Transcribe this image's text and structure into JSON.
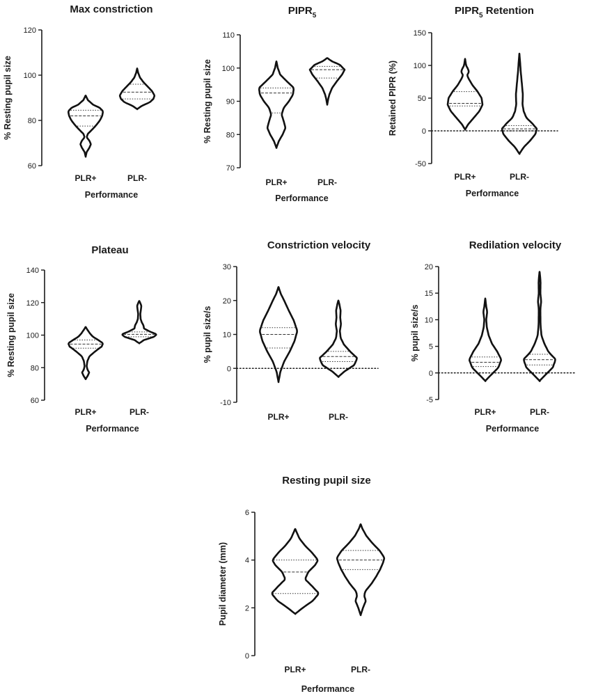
{
  "chart_data": [
    {
      "type": "violin",
      "id": "max-constriction",
      "title": "Max constriction",
      "ylabel": "% Resting pupil size",
      "xlabel": "Performance",
      "ylim": [
        60,
        120
      ],
      "yticks": [
        60,
        80,
        100,
        120
      ],
      "zero_line": false,
      "categories": [
        "PLR+",
        "PLR-"
      ],
      "violins": [
        {
          "name": "PLR+",
          "range": [
            64,
            91
          ],
          "q1": 77.5,
          "median": 82,
          "q3": 84.5,
          "profile": [
            [
              64,
              0
            ],
            [
              66,
              0.06
            ],
            [
              68,
              0.22
            ],
            [
              69.5,
              0.3
            ],
            [
              71,
              0.22
            ],
            [
              72.5,
              0.06
            ],
            [
              74,
              0.12
            ],
            [
              76,
              0.38
            ],
            [
              78,
              0.62
            ],
            [
              80,
              0.82
            ],
            [
              82,
              0.95
            ],
            [
              84,
              1.0
            ],
            [
              85.5,
              0.82
            ],
            [
              87,
              0.42
            ],
            [
              89,
              0.13
            ],
            [
              91,
              0
            ]
          ]
        },
        {
          "name": "PLR-",
          "range": [
            85,
            103
          ],
          "q1": 89.5,
          "median": 92.5,
          "q3": 96,
          "profile": [
            [
              85,
              0
            ],
            [
              86.5,
              0.28
            ],
            [
              88,
              0.72
            ],
            [
              89.5,
              0.93
            ],
            [
              91,
              1.0
            ],
            [
              93,
              0.85
            ],
            [
              95,
              0.6
            ],
            [
              97,
              0.35
            ],
            [
              99,
              0.16
            ],
            [
              101,
              0.06
            ],
            [
              103,
              0
            ]
          ]
        }
      ]
    },
    {
      "type": "violin",
      "id": "pipr5",
      "title": "PIPR",
      "title_sub": "5",
      "ylabel": "% Resting pupil size",
      "xlabel": "Performance",
      "ylim": [
        70,
        110
      ],
      "yticks": [
        70,
        80,
        90,
        100,
        110
      ],
      "zero_line": false,
      "categories": [
        "PLR+",
        "PLR-"
      ],
      "violins": [
        {
          "name": "PLR+",
          "range": [
            76,
            102
          ],
          "q1": 86.5,
          "median": 92.5,
          "q3": 94,
          "profile": [
            [
              76,
              0
            ],
            [
              78,
              0.14
            ],
            [
              80,
              0.36
            ],
            [
              82,
              0.52
            ],
            [
              84,
              0.42
            ],
            [
              86,
              0.3
            ],
            [
              88,
              0.42
            ],
            [
              90,
              0.72
            ],
            [
              92,
              0.95
            ],
            [
              94,
              1.0
            ],
            [
              96,
              0.6
            ],
            [
              98,
              0.22
            ],
            [
              100,
              0.08
            ],
            [
              102,
              0
            ]
          ]
        },
        {
          "name": "PLR-",
          "range": [
            89,
            103
          ],
          "q1": 97,
          "median": 99.5,
          "q3": 100.5,
          "profile": [
            [
              89,
              0
            ],
            [
              90.5,
              0.05
            ],
            [
              92,
              0.12
            ],
            [
              94,
              0.28
            ],
            [
              96,
              0.55
            ],
            [
              98,
              0.85
            ],
            [
              99.5,
              1.0
            ],
            [
              101,
              0.72
            ],
            [
              102,
              0.28
            ],
            [
              103,
              0
            ]
          ]
        }
      ]
    },
    {
      "type": "violin",
      "id": "pipr5-retention",
      "title": "PIPR",
      "title_sub": "5",
      "title_rest": " Retention",
      "ylabel": "Retained PIPR (%)",
      "xlabel": "Performance",
      "ylim": [
        -50,
        150
      ],
      "yticks": [
        -50,
        0,
        50,
        100,
        150
      ],
      "zero_line": true,
      "categories": [
        "PLR+",
        "PLR-"
      ],
      "violins": [
        {
          "name": "PLR+",
          "range": [
            2,
            110
          ],
          "q1": 38,
          "median": 42,
          "q3": 60,
          "profile": [
            [
              2,
              0
            ],
            [
              10,
              0.18
            ],
            [
              20,
              0.5
            ],
            [
              30,
              0.82
            ],
            [
              40,
              1.0
            ],
            [
              50,
              0.95
            ],
            [
              60,
              0.72
            ],
            [
              70,
              0.42
            ],
            [
              80,
              0.2
            ],
            [
              85,
              0.12
            ],
            [
              90,
              0.22
            ],
            [
              95,
              0.16
            ],
            [
              100,
              0.06
            ],
            [
              110,
              0
            ]
          ]
        },
        {
          "name": "PLR-",
          "range": [
            -35,
            118
          ],
          "q1": 0,
          "median": 3,
          "q3": 8,
          "profile": [
            [
              -35,
              0
            ],
            [
              -25,
              0.25
            ],
            [
              -15,
              0.62
            ],
            [
              -5,
              0.92
            ],
            [
              3,
              1.0
            ],
            [
              12,
              0.72
            ],
            [
              20,
              0.4
            ],
            [
              30,
              0.25
            ],
            [
              40,
              0.18
            ],
            [
              55,
              0.2
            ],
            [
              70,
              0.15
            ],
            [
              90,
              0.08
            ],
            [
              105,
              0.04
            ],
            [
              118,
              0
            ]
          ]
        }
      ]
    },
    {
      "type": "violin",
      "id": "plateau",
      "title": "Plateau",
      "ylabel": "% Resting pupil size",
      "xlabel": "Performance",
      "ylim": [
        60,
        140
      ],
      "yticks": [
        60,
        80,
        100,
        120,
        140
      ],
      "zero_line": false,
      "categories": [
        "PLR+",
        "PLR-"
      ],
      "violins": [
        {
          "name": "PLR+",
          "range": [
            73,
            105
          ],
          "q1": 92,
          "median": 94.5,
          "q3": 97,
          "profile": [
            [
              73,
              0
            ],
            [
              75,
              0.12
            ],
            [
              77,
              0.2
            ],
            [
              79,
              0.1
            ],
            [
              81,
              0.06
            ],
            [
              84,
              0.1
            ],
            [
              87,
              0.22
            ],
            [
              90,
              0.55
            ],
            [
              93,
              0.92
            ],
            [
              95,
              1.0
            ],
            [
              97,
              0.72
            ],
            [
              99,
              0.42
            ],
            [
              101,
              0.25
            ],
            [
              103,
              0.12
            ],
            [
              105,
              0
            ]
          ]
        },
        {
          "name": "PLR-",
          "range": [
            95,
            121
          ],
          "q1": 99,
          "median": 100.5,
          "q3": 102,
          "profile": [
            [
              95,
              0
            ],
            [
              97,
              0.28
            ],
            [
              99,
              0.85
            ],
            [
              100.5,
              1.0
            ],
            [
              102,
              0.65
            ],
            [
              104,
              0.28
            ],
            [
              106,
              0.24
            ],
            [
              108,
              0.14
            ],
            [
              110,
              0.08
            ],
            [
              113,
              0.06
            ],
            [
              116,
              0.1
            ],
            [
              118,
              0.12
            ],
            [
              120,
              0.05
            ],
            [
              121,
              0
            ]
          ]
        }
      ]
    },
    {
      "type": "violin",
      "id": "constriction-velocity",
      "title": "Constriction velocity",
      "ylabel": "% pupil size/s",
      "xlabel": "",
      "ylim": [
        -10,
        30
      ],
      "yticks": [
        -10,
        0,
        10,
        20,
        30
      ],
      "zero_line": true,
      "categories": [
        "PLR+",
        "PLR-"
      ],
      "violins": [
        {
          "name": "PLR+",
          "range": [
            -4,
            24
          ],
          "q1": 6,
          "median": 10,
          "q3": 12,
          "profile": [
            [
              -4,
              0
            ],
            [
              -1,
              0.1
            ],
            [
              2,
              0.3
            ],
            [
              5,
              0.6
            ],
            [
              8,
              0.85
            ],
            [
              11,
              1.0
            ],
            [
              14,
              0.82
            ],
            [
              17,
              0.55
            ],
            [
              20,
              0.3
            ],
            [
              22,
              0.12
            ],
            [
              24,
              0
            ]
          ]
        },
        {
          "name": "PLR-",
          "range": [
            -2.5,
            20
          ],
          "q1": 2,
          "median": 3.5,
          "q3": 5,
          "profile": [
            [
              -2.5,
              0
            ],
            [
              -1,
              0.3
            ],
            [
              1,
              0.85
            ],
            [
              3,
              1.0
            ],
            [
              5,
              0.62
            ],
            [
              7,
              0.3
            ],
            [
              9,
              0.12
            ],
            [
              11,
              0.08
            ],
            [
              13,
              0.14
            ],
            [
              15,
              0.1
            ],
            [
              17,
              0.12
            ],
            [
              19,
              0.05
            ],
            [
              20,
              0
            ]
          ]
        }
      ]
    },
    {
      "type": "violin",
      "id": "redilation-velocity",
      "title": "Redilation velocity",
      "ylabel": "% pupil size/s",
      "xlabel": "Performance",
      "ylim": [
        -5,
        20
      ],
      "yticks": [
        -5,
        0,
        5,
        10,
        15,
        20
      ],
      "zero_line": true,
      "categories": [
        "PLR+",
        "PLR-"
      ],
      "violins": [
        {
          "name": "PLR+",
          "range": [
            -1.5,
            14
          ],
          "q1": 1.2,
          "median": 2,
          "q3": 3,
          "profile": [
            [
              -1.5,
              0
            ],
            [
              -0.5,
              0.32
            ],
            [
              1,
              0.82
            ],
            [
              2.5,
              1.0
            ],
            [
              4,
              0.75
            ],
            [
              5.5,
              0.42
            ],
            [
              7,
              0.22
            ],
            [
              8.5,
              0.1
            ],
            [
              10,
              0.06
            ],
            [
              11.5,
              0.12
            ],
            [
              12.5,
              0.06
            ],
            [
              14,
              0
            ]
          ]
        },
        {
          "name": "PLR-",
          "range": [
            -1.5,
            19
          ],
          "q1": 1.5,
          "median": 2.5,
          "q3": 3.5,
          "profile": [
            [
              -1.5,
              0
            ],
            [
              -0.5,
              0.32
            ],
            [
              1,
              0.82
            ],
            [
              2.5,
              1.0
            ],
            [
              4,
              0.55
            ],
            [
              5.5,
              0.3
            ],
            [
              7,
              0.12
            ],
            [
              9,
              0.06
            ],
            [
              12,
              0.05
            ],
            [
              13.5,
              0.1
            ],
            [
              15,
              0.05
            ],
            [
              17,
              0.06
            ],
            [
              18,
              0.04
            ],
            [
              19,
              0
            ]
          ]
        }
      ]
    },
    {
      "type": "violin",
      "id": "resting-pupil-size",
      "title": "Resting pupil size",
      "ylabel": "Pupil diameter (mm)",
      "xlabel": "Performance",
      "ylim": [
        0,
        6
      ],
      "yticks": [
        0,
        2,
        4,
        6
      ],
      "zero_line": false,
      "categories": [
        "PLR+",
        "PLR-"
      ],
      "violins": [
        {
          "name": "PLR+",
          "range": [
            1.75,
            5.3
          ],
          "q1": 2.6,
          "median": 3.5,
          "q3": 4.0,
          "profile": [
            [
              1.75,
              0
            ],
            [
              2.0,
              0.32
            ],
            [
              2.3,
              0.75
            ],
            [
              2.6,
              1.0
            ],
            [
              2.9,
              0.72
            ],
            [
              3.2,
              0.42
            ],
            [
              3.5,
              0.55
            ],
            [
              3.8,
              0.85
            ],
            [
              4.0,
              0.96
            ],
            [
              4.3,
              0.72
            ],
            [
              4.6,
              0.42
            ],
            [
              4.9,
              0.18
            ],
            [
              5.3,
              0
            ]
          ]
        },
        {
          "name": "PLR-",
          "range": [
            1.7,
            5.5
          ],
          "q1": 3.6,
          "median": 4.0,
          "q3": 4.4,
          "profile": [
            [
              1.7,
              0
            ],
            [
              2.0,
              0.1
            ],
            [
              2.3,
              0.22
            ],
            [
              2.5,
              0.15
            ],
            [
              2.7,
              0.2
            ],
            [
              3.0,
              0.45
            ],
            [
              3.3,
              0.65
            ],
            [
              3.6,
              0.82
            ],
            [
              3.9,
              0.95
            ],
            [
              4.1,
              1.0
            ],
            [
              4.4,
              0.8
            ],
            [
              4.7,
              0.5
            ],
            [
              5.0,
              0.25
            ],
            [
              5.3,
              0.08
            ],
            [
              5.5,
              0
            ]
          ]
        }
      ]
    }
  ]
}
